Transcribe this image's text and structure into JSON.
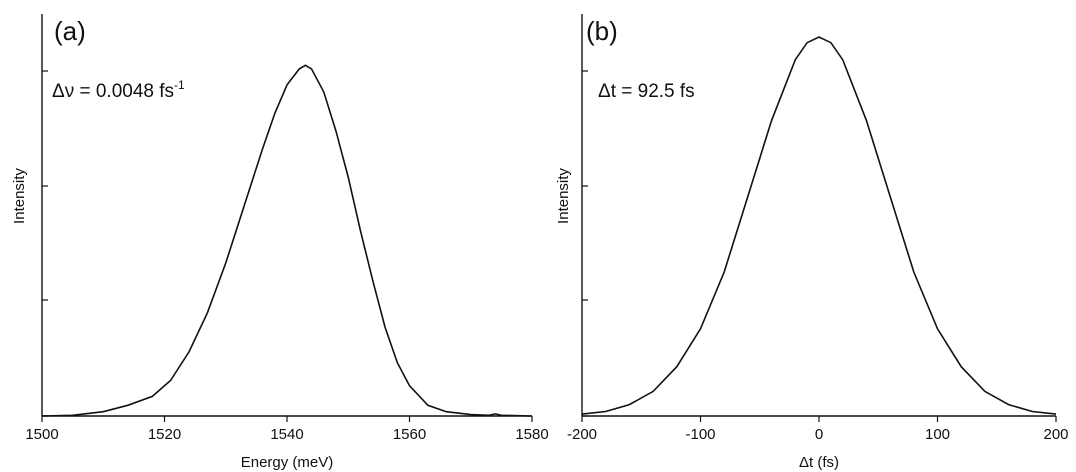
{
  "chart_data": [
    {
      "type": "line",
      "panel_label": "(a)",
      "xlabel": "Energy (meV)",
      "ylabel": "Intensity",
      "xlim": [
        1500,
        1580
      ],
      "ylim": [
        0,
        1.0
      ],
      "xticks": [
        1500,
        1520,
        1540,
        1560,
        1580
      ],
      "x_tick_labels": [
        "1500",
        "1520",
        "1540",
        "1560",
        "1580"
      ],
      "y_tick_labels_shown": false,
      "annotation": {
        "prefix": "Δν = 0.0048 fs",
        "superscript": "-1"
      },
      "series": [
        {
          "x": [
            1500,
            1505,
            1510,
            1514,
            1518,
            1521,
            1524,
            1527,
            1530,
            1533,
            1536,
            1538,
            1540,
            1542,
            1543,
            1544,
            1546,
            1548,
            1550,
            1552,
            1554,
            1556,
            1558,
            1560,
            1563,
            1566,
            1570,
            1573,
            1574,
            1575,
            1580
          ],
          "y": [
            0,
            0.002,
            0.012,
            0.03,
            0.055,
            0.1,
            0.18,
            0.29,
            0.43,
            0.59,
            0.75,
            0.85,
            0.93,
            0.975,
            0.985,
            0.975,
            0.91,
            0.8,
            0.67,
            0.52,
            0.38,
            0.25,
            0.15,
            0.085,
            0.03,
            0.012,
            0.004,
            0.002,
            0.006,
            0.002,
            0
          ]
        }
      ]
    },
    {
      "type": "line",
      "panel_label": "(b)",
      "xlabel": "Δt (fs)",
      "ylabel": "Intensity",
      "xlim": [
        -200,
        200
      ],
      "ylim": [
        0,
        1.0
      ],
      "xticks": [
        -200,
        -100,
        0,
        100,
        200
      ],
      "x_tick_labels": [
        "-200",
        "-100",
        "0",
        "100",
        "200"
      ],
      "y_tick_labels_shown": false,
      "annotation": {
        "prefix": "Δt = 92.5 fs",
        "superscript": ""
      },
      "series": [
        {
          "x": [
            -200,
            -180,
            -160,
            -140,
            -120,
            -100,
            -80,
            -60,
            -40,
            -20,
            -10,
            0,
            10,
            20,
            40,
            60,
            80,
            100,
            120,
            140,
            160,
            180,
            200
          ],
          "y": [
            0.005,
            0.012,
            0.03,
            0.065,
            0.13,
            0.23,
            0.38,
            0.58,
            0.78,
            0.94,
            0.985,
            1.0,
            0.985,
            0.94,
            0.78,
            0.58,
            0.38,
            0.23,
            0.13,
            0.065,
            0.03,
            0.012,
            0.005
          ]
        }
      ]
    }
  ]
}
